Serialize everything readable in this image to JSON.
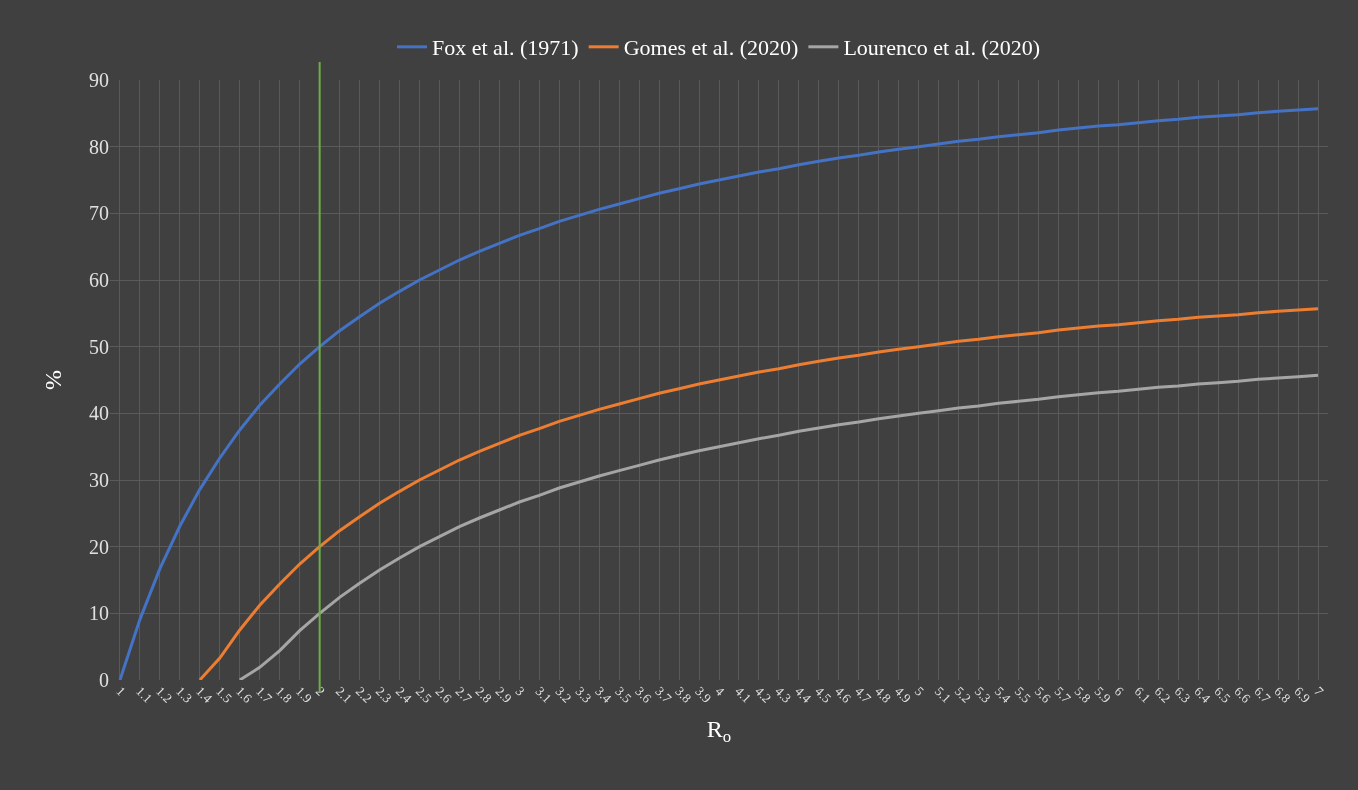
{
  "chart_data": {
    "type": "line",
    "xlabel": "R$_{o}$",
    "ylabel": "%",
    "categories": [
      "1",
      "1.1",
      "1.2",
      "1.3",
      "1.4",
      "1.5",
      "1.6",
      "1.7",
      "1.8",
      "1.9",
      "2",
      "2.1",
      "2.2",
      "2.3",
      "2.4",
      "2.5",
      "2.6",
      "2.7",
      "2.8",
      "2.9",
      "3",
      "3.1",
      "3.2",
      "3.3",
      "3.4",
      "3.5",
      "3.6",
      "3.7",
      "3.8",
      "3.9",
      "4",
      "4.1",
      "4.2",
      "4.3",
      "4.4",
      "4.5",
      "4.6",
      "4.7",
      "4.8",
      "4.9",
      "5",
      "5.1",
      "5.2",
      "5.3",
      "5.4",
      "5.5",
      "5.6",
      "5.7",
      "5.8",
      "5.9",
      "6",
      "6.1",
      "6.2",
      "6.3",
      "6.4",
      "6.5",
      "6.6",
      "6.7",
      "6.8",
      "6.9",
      "7"
    ],
    "series": [
      {
        "name": "Fox et al. (1971)",
        "color": "#4472c4",
        "values": [
          0,
          9.1,
          16.7,
          23.1,
          28.6,
          33.3,
          37.5,
          41.2,
          44.4,
          47.4,
          50,
          52.4,
          54.5,
          56.5,
          58.3,
          60,
          61.5,
          63,
          64.3,
          65.5,
          66.7,
          67.7,
          68.8,
          69.7,
          70.6,
          71.4,
          72.2,
          73,
          73.7,
          74.4,
          75,
          75.6,
          76.2,
          76.7,
          77.3,
          77.8,
          78.3,
          78.7,
          79.2,
          79.6,
          80,
          80.4,
          80.8,
          81.1,
          81.5,
          81.8,
          82.1,
          82.5,
          82.8,
          83.1,
          83.3,
          83.6,
          83.9,
          84.1,
          84.4,
          84.6,
          84.8,
          85.1,
          85.3,
          85.5,
          85.7
        ]
      },
      {
        "name": "Gomes et al. (2020)",
        "color": "#ed7d31",
        "values": [
          null,
          null,
          null,
          null,
          0,
          3.3,
          7.5,
          11.2,
          14.4,
          17.4,
          20,
          22.4,
          24.5,
          26.5,
          28.3,
          30,
          31.5,
          33,
          34.3,
          35.5,
          36.7,
          37.7,
          38.8,
          39.7,
          40.6,
          41.4,
          42.2,
          43,
          43.7,
          44.4,
          45,
          45.6,
          46.2,
          46.7,
          47.3,
          47.8,
          48.3,
          48.7,
          49.2,
          49.6,
          50,
          50.4,
          50.8,
          51.1,
          51.5,
          51.8,
          52.1,
          52.5,
          52.8,
          53.1,
          53.3,
          53.6,
          53.9,
          54.1,
          54.4,
          54.6,
          54.8,
          55.1,
          55.3,
          55.5,
          55.7
        ]
      },
      {
        "name": "Lourenco et al. (2020)",
        "color": "#a5a5a5",
        "values": [
          null,
          null,
          null,
          null,
          null,
          null,
          0,
          1.9,
          4.4,
          7.4,
          10,
          12.4,
          14.5,
          16.5,
          18.3,
          20,
          21.5,
          23,
          24.3,
          25.5,
          26.7,
          27.7,
          28.8,
          29.7,
          30.6,
          31.4,
          32.2,
          33,
          33.7,
          34.4,
          35,
          35.6,
          36.2,
          36.7,
          37.3,
          37.8,
          38.3,
          38.7,
          39.2,
          39.6,
          40,
          40.4,
          40.8,
          41.1,
          41.5,
          41.8,
          42.1,
          42.5,
          42.8,
          43.1,
          43.3,
          43.6,
          43.9,
          44.1,
          44.4,
          44.6,
          44.8,
          45.1,
          45.3,
          45.5,
          45.7
        ]
      }
    ],
    "ylim": [
      0,
      90
    ],
    "yticks": [
      0,
      10,
      20,
      30,
      40,
      50,
      60,
      70,
      80,
      90
    ],
    "ref_lines": [
      {
        "axis": "x",
        "value": "2",
        "color": "#70ad47"
      }
    ],
    "grid": true,
    "legend": "top",
    "marker": "none",
    "line_style": "solid"
  }
}
